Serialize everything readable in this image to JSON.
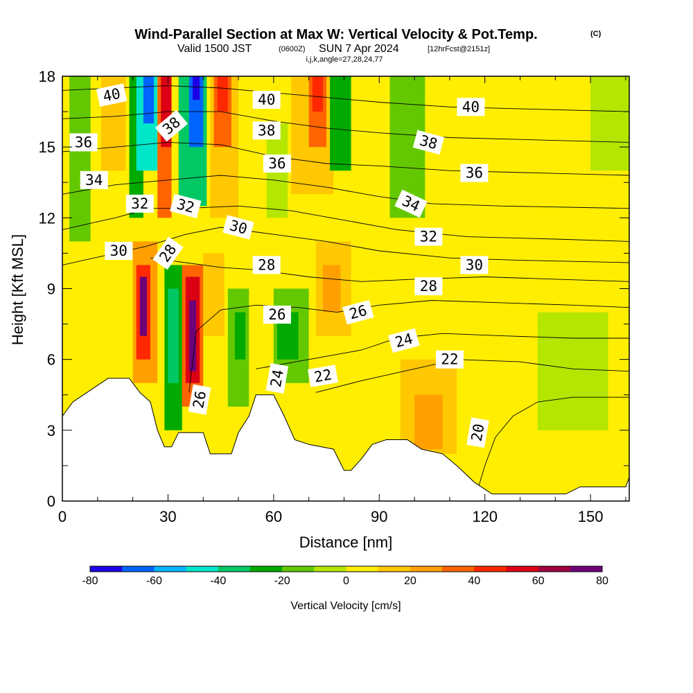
{
  "title": {
    "main": "Wind-Parallel Section at Max W: Vertical Velocity & Pot.Temp.",
    "copyright": "(C)",
    "line2_a": "Valid 1500 JST",
    "line2_b": "(0600Z)",
    "line2_c": "SUN 7 Apr 2024",
    "line2_d": "[12hrFcst@2151z]",
    "line3": "i,j,k,angle=27,28,24,77"
  },
  "chart_data": {
    "type": "heatmap",
    "xlabel": "Distance [nm]",
    "ylabel": "Height [Kft MSL]",
    "xlim": [
      0,
      161
    ],
    "ylim": [
      0,
      18
    ],
    "x_ticks": [
      0,
      30,
      60,
      90,
      120,
      150
    ],
    "y_ticks": [
      0,
      3,
      6,
      9,
      12,
      15,
      18
    ],
    "colorbar": {
      "title": "Vertical Velocity [cm/s]",
      "ticks": [
        -80,
        -60,
        -40,
        -20,
        0,
        20,
        40,
        60,
        80
      ],
      "range": [
        -80,
        80
      ],
      "colors": [
        "#1c00e6",
        "#0064ff",
        "#00b4ff",
        "#00e6c8",
        "#00c864",
        "#00aa00",
        "#64c800",
        "#b4e600",
        "#ffee00",
        "#ffc800",
        "#ffa000",
        "#ff6400",
        "#ff2800",
        "#dc0014",
        "#a0003c",
        "#6e0078"
      ]
    },
    "terrain_kft": [
      [
        0,
        3.6
      ],
      [
        3,
        4.2
      ],
      [
        7,
        4.6
      ],
      [
        10,
        4.9
      ],
      [
        13,
        5.2
      ],
      [
        19,
        5.2
      ],
      [
        22,
        4.6
      ],
      [
        25,
        4.2
      ],
      [
        27,
        3.0
      ],
      [
        29,
        2.3
      ],
      [
        31,
        2.3
      ],
      [
        33,
        2.9
      ],
      [
        40,
        2.9
      ],
      [
        42,
        2.0
      ],
      [
        48,
        2.0
      ],
      [
        50,
        2.9
      ],
      [
        53,
        3.6
      ],
      [
        55,
        4.5
      ],
      [
        60,
        4.5
      ],
      [
        63,
        3.6
      ],
      [
        66,
        2.6
      ],
      [
        70,
        2.4
      ],
      [
        77,
        2.2
      ],
      [
        80,
        1.3
      ],
      [
        82,
        1.3
      ],
      [
        85,
        1.8
      ],
      [
        88,
        2.4
      ],
      [
        92,
        2.6
      ],
      [
        98,
        2.6
      ],
      [
        102,
        2.2
      ],
      [
        108,
        2.0
      ],
      [
        112,
        1.5
      ],
      [
        117,
        0.8
      ],
      [
        122,
        0.3
      ],
      [
        143,
        0.3
      ],
      [
        147,
        0.6
      ],
      [
        160,
        0.6
      ],
      [
        161,
        1.0
      ]
    ],
    "w_regions": [
      {
        "x": 0,
        "w": 161,
        "y0": 0,
        "y1": 18,
        "w_val": 2
      },
      {
        "x": 90,
        "w": 71,
        "y0": 12,
        "y1": 18,
        "w_val": 2
      },
      {
        "x": 130,
        "w": 31,
        "y0": 0,
        "y1": 18,
        "w_val": 0
      },
      {
        "x": 0,
        "w": 20,
        "y0": 8,
        "y1": 18,
        "w_val": 0
      },
      {
        "x": 0,
        "w": 30,
        "y0": 4.5,
        "y1": 7.5,
        "w_val": 5
      },
      {
        "x": 2,
        "w": 6,
        "y0": 11,
        "y1": 18,
        "w_val": -12
      },
      {
        "x": 11,
        "w": 7,
        "y0": 14,
        "y1": 18,
        "w_val": 12
      },
      {
        "x": 19,
        "w": 4,
        "y0": 12,
        "y1": 18,
        "w_val": -28
      },
      {
        "x": 20,
        "w": 7,
        "y0": 5,
        "y1": 11,
        "w_val": 25
      },
      {
        "x": 21,
        "w": 4,
        "y0": 6,
        "y1": 10,
        "w_val": 48
      },
      {
        "x": 22,
        "w": 2,
        "y0": 7,
        "y1": 9.5,
        "w_val": 75
      },
      {
        "x": 21,
        "w": 6,
        "y0": 14,
        "y1": 18,
        "w_val": -45
      },
      {
        "x": 23,
        "w": 3,
        "y0": 16,
        "y1": 18,
        "w_val": -62
      },
      {
        "x": 27,
        "w": 4,
        "y0": 12,
        "y1": 18,
        "w_val": 30
      },
      {
        "x": 28,
        "w": 3,
        "y0": 15,
        "y1": 18,
        "w_val": 52
      },
      {
        "x": 29,
        "w": 5,
        "y0": 3,
        "y1": 10,
        "w_val": -25
      },
      {
        "x": 30,
        "w": 3,
        "y0": 5,
        "y1": 9,
        "w_val": -40
      },
      {
        "x": 33,
        "w": 8,
        "y0": 12.5,
        "y1": 18,
        "w_val": -32
      },
      {
        "x": 36,
        "w": 4,
        "y0": 15,
        "y1": 18,
        "w_val": -62
      },
      {
        "x": 37,
        "w": 2,
        "y0": 17,
        "y1": 18,
        "w_val": -75
      },
      {
        "x": 34,
        "w": 6,
        "y0": 4,
        "y1": 10,
        "w_val": 30
      },
      {
        "x": 35,
        "w": 4,
        "y0": 5,
        "y1": 9.5,
        "w_val": 52
      },
      {
        "x": 36,
        "w": 2,
        "y0": 5.5,
        "y1": 8.5,
        "w_val": 75
      },
      {
        "x": 40,
        "w": 6,
        "y0": 7,
        "y1": 10.5,
        "w_val": 15
      },
      {
        "x": 42,
        "w": 8,
        "y0": 12,
        "y1": 18,
        "w_val": 12
      },
      {
        "x": 43,
        "w": 5,
        "y0": 15,
        "y1": 18,
        "w_val": 30
      },
      {
        "x": 44,
        "w": 3,
        "y0": 16.5,
        "y1": 18,
        "w_val": 45
      },
      {
        "x": 47,
        "w": 6,
        "y0": 4,
        "y1": 9,
        "w_val": -15
      },
      {
        "x": 49,
        "w": 3,
        "y0": 6,
        "y1": 8,
        "w_val": -28
      },
      {
        "x": 60,
        "w": 10,
        "y0": 5,
        "y1": 9,
        "w_val": -18
      },
      {
        "x": 61,
        "w": 6,
        "y0": 6,
        "y1": 8,
        "w_val": -25
      },
      {
        "x": 58,
        "w": 6,
        "y0": 12,
        "y1": 16,
        "w_val": -8
      },
      {
        "x": 65,
        "w": 12,
        "y0": 13,
        "y1": 18,
        "w_val": 12
      },
      {
        "x": 70,
        "w": 5,
        "y0": 15,
        "y1": 18,
        "w_val": 32
      },
      {
        "x": 71,
        "w": 3,
        "y0": 16.5,
        "y1": 18,
        "w_val": 48
      },
      {
        "x": 76,
        "w": 6,
        "y0": 14,
        "y1": 18,
        "w_val": -22
      },
      {
        "x": 77,
        "w": 3,
        "y0": 16,
        "y1": 18,
        "w_val": -30
      },
      {
        "x": 72,
        "w": 10,
        "y0": 7,
        "y1": 11,
        "w_val": 12
      },
      {
        "x": 74,
        "w": 5,
        "y0": 8,
        "y1": 10,
        "w_val": 24
      },
      {
        "x": 93,
        "w": 10,
        "y0": 12,
        "y1": 18,
        "w_val": -12
      },
      {
        "x": 95,
        "w": 5,
        "y0": 14,
        "y1": 17,
        "w_val": -20
      },
      {
        "x": 96,
        "w": 16,
        "y0": 2,
        "y1": 6,
        "w_val": 12
      },
      {
        "x": 100,
        "w": 8,
        "y0": 2.2,
        "y1": 4.5,
        "w_val": 24
      },
      {
        "x": 118,
        "w": 14,
        "y0": 0.5,
        "y1": 5,
        "w_val": 8
      },
      {
        "x": 135,
        "w": 20,
        "y0": 3,
        "y1": 8,
        "w_val": -5
      },
      {
        "x": 150,
        "w": 11,
        "y0": 14,
        "y1": 18,
        "w_val": -5
      }
    ],
    "theta_contours": [
      {
        "level": 20,
        "pts": [
          [
            118,
            0.5
          ],
          [
            120,
            1.5
          ],
          [
            123,
            2.7
          ],
          [
            128,
            3.6
          ],
          [
            135,
            4.2
          ],
          [
            145,
            4.4
          ],
          [
            161,
            4.4
          ]
        ]
      },
      {
        "level": 22,
        "pts": [
          [
            72,
            4.6
          ],
          [
            85,
            5.1
          ],
          [
            100,
            5.6
          ],
          [
            112,
            6.0
          ],
          [
            130,
            5.9
          ],
          [
            145,
            5.6
          ],
          [
            161,
            5.5
          ]
        ]
      },
      {
        "level": 24,
        "pts": [
          [
            55,
            5.6
          ],
          [
            70,
            6.0
          ],
          [
            85,
            6.4
          ],
          [
            95,
            6.9
          ],
          [
            108,
            7.1
          ],
          [
            125,
            7.0
          ],
          [
            145,
            6.9
          ],
          [
            161,
            6.9
          ]
        ]
      },
      {
        "level": 26,
        "pts": [
          [
            36,
            4.6
          ],
          [
            38,
            7.2
          ],
          [
            45,
            8.1
          ],
          [
            55,
            8.3
          ],
          [
            67,
            8.2
          ],
          [
            78,
            8.0
          ],
          [
            90,
            8.3
          ],
          [
            105,
            8.5
          ],
          [
            125,
            8.4
          ],
          [
            145,
            8.3
          ],
          [
            161,
            8.2
          ]
        ]
      },
      {
        "level": 28,
        "pts": [
          [
            25,
            10.3
          ],
          [
            35,
            10.1
          ],
          [
            45,
            9.9
          ],
          [
            55,
            9.8
          ],
          [
            70,
            9.5
          ],
          [
            85,
            9.3
          ],
          [
            100,
            9.4
          ],
          [
            120,
            9.5
          ],
          [
            140,
            9.4
          ],
          [
            161,
            9.3
          ]
        ]
      },
      {
        "level": 30,
        "pts": [
          [
            0,
            10.0
          ],
          [
            12,
            10.4
          ],
          [
            24,
            10.8
          ],
          [
            35,
            11.3
          ],
          [
            45,
            11.6
          ],
          [
            60,
            11.3
          ],
          [
            75,
            11.0
          ],
          [
            90,
            10.6
          ],
          [
            110,
            10.3
          ],
          [
            130,
            10.2
          ],
          [
            161,
            10.1
          ]
        ]
      },
      {
        "level": 32,
        "pts": [
          [
            0,
            11.5
          ],
          [
            15,
            12.0
          ],
          [
            25,
            12.4
          ],
          [
            35,
            12.4
          ],
          [
            50,
            12.5
          ],
          [
            65,
            12.3
          ],
          [
            80,
            11.9
          ],
          [
            95,
            11.5
          ],
          [
            115,
            11.2
          ],
          [
            140,
            11.1
          ],
          [
            161,
            11.0
          ]
        ]
      },
      {
        "level": 34,
        "pts": [
          [
            0,
            13.0
          ],
          [
            15,
            13.4
          ],
          [
            30,
            13.6
          ],
          [
            45,
            13.8
          ],
          [
            60,
            13.6
          ],
          [
            75,
            13.3
          ],
          [
            90,
            12.9
          ],
          [
            105,
            12.6
          ],
          [
            125,
            12.5
          ],
          [
            161,
            12.4
          ]
        ]
      },
      {
        "level": 36,
        "pts": [
          [
            0,
            14.8
          ],
          [
            15,
            15.0
          ],
          [
            30,
            15.2
          ],
          [
            45,
            15.1
          ],
          [
            60,
            14.6
          ],
          [
            75,
            14.3
          ],
          [
            90,
            14.2
          ],
          [
            110,
            14.0
          ],
          [
            135,
            13.9
          ],
          [
            161,
            13.8
          ]
        ]
      },
      {
        "level": 38,
        "pts": [
          [
            0,
            16.2
          ],
          [
            15,
            16.3
          ],
          [
            30,
            16.5
          ],
          [
            45,
            16.5
          ],
          [
            60,
            16.1
          ],
          [
            75,
            15.8
          ],
          [
            90,
            15.6
          ],
          [
            110,
            15.4
          ],
          [
            135,
            15.3
          ],
          [
            161,
            15.2
          ]
        ]
      },
      {
        "level": 40,
        "pts": [
          [
            0,
            17.4
          ],
          [
            15,
            17.5
          ],
          [
            30,
            17.6
          ],
          [
            45,
            17.5
          ],
          [
            60,
            17.3
          ],
          [
            75,
            17.1
          ],
          [
            90,
            16.9
          ],
          [
            110,
            16.7
          ],
          [
            135,
            16.6
          ],
          [
            161,
            16.5
          ]
        ]
      }
    ],
    "contour_labels": [
      {
        "text": "40",
        "x": 14,
        "y": 17.2,
        "angle": -12
      },
      {
        "text": "40",
        "x": 58,
        "y": 17.0,
        "angle": 0
      },
      {
        "text": "40",
        "x": 116,
        "y": 16.7,
        "angle": 0
      },
      {
        "text": "38",
        "x": 31,
        "y": 15.9,
        "angle": -40
      },
      {
        "text": "38",
        "x": 58,
        "y": 15.7,
        "angle": 0
      },
      {
        "text": "38",
        "x": 104,
        "y": 15.2,
        "angle": 15
      },
      {
        "text": "36",
        "x": 6,
        "y": 15.2,
        "angle": 0
      },
      {
        "text": "36",
        "x": 61,
        "y": 14.3,
        "angle": 0
      },
      {
        "text": "36",
        "x": 117,
        "y": 13.9,
        "angle": 0
      },
      {
        "text": "34",
        "x": 9,
        "y": 13.6,
        "angle": 0
      },
      {
        "text": "34",
        "x": 99,
        "y": 12.6,
        "angle": 25
      },
      {
        "text": "32",
        "x": 22,
        "y": 12.6,
        "angle": 0
      },
      {
        "text": "32",
        "x": 35,
        "y": 12.5,
        "angle": 15
      },
      {
        "text": "32",
        "x": 104,
        "y": 11.2,
        "angle": 0
      },
      {
        "text": "30",
        "x": 50,
        "y": 11.6,
        "angle": 15
      },
      {
        "text": "30",
        "x": 16,
        "y": 10.6,
        "angle": 0
      },
      {
        "text": "30",
        "x": 117,
        "y": 10.0,
        "angle": 0
      },
      {
        "text": "28",
        "x": 30,
        "y": 10.5,
        "angle": -55
      },
      {
        "text": "28",
        "x": 58,
        "y": 10.0,
        "angle": 0
      },
      {
        "text": "28",
        "x": 104,
        "y": 9.1,
        "angle": 0
      },
      {
        "text": "26",
        "x": 61,
        "y": 7.9,
        "angle": 0
      },
      {
        "text": "26",
        "x": 84,
        "y": 8.0,
        "angle": -15
      },
      {
        "text": "26",
        "x": 39,
        "y": 4.3,
        "angle": -80
      },
      {
        "text": "24",
        "x": 97,
        "y": 6.8,
        "angle": -15
      },
      {
        "text": "24",
        "x": 61,
        "y": 5.2,
        "angle": -80
      },
      {
        "text": "22",
        "x": 74,
        "y": 5.3,
        "angle": -10
      },
      {
        "text": "22",
        "x": 110,
        "y": 6.0,
        "angle": 0
      },
      {
        "text": "20",
        "x": 118,
        "y": 2.9,
        "angle": -80
      }
    ]
  }
}
